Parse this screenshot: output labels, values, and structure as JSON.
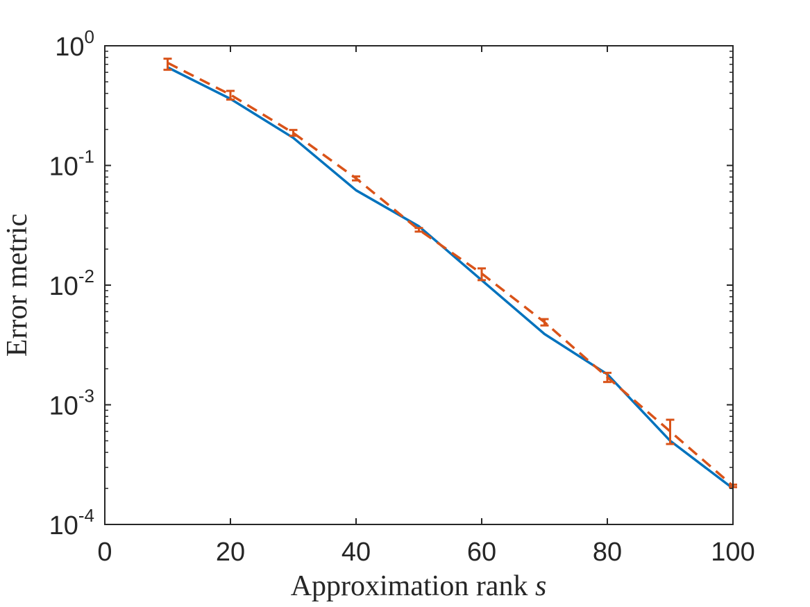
{
  "chart_data": {
    "type": "line",
    "xlabel": "Approximation rank",
    "xlabel_symbol": "s",
    "ylabel": "Error metric",
    "xlim": [
      0,
      100
    ],
    "ylim": [
      0.0001,
      1
    ],
    "yscale": "log",
    "grid": false,
    "legend": "none",
    "xticks": [
      0,
      20,
      40,
      60,
      80,
      100
    ],
    "xtick_labels": [
      "0",
      "20",
      "40",
      "60",
      "80",
      "100"
    ],
    "yticks": [
      1,
      0.1,
      0.01,
      0.001,
      0.0001
    ],
    "ytick_base": [
      "10",
      "10",
      "10",
      "10",
      "10"
    ],
    "ytick_exponents": [
      "0",
      "-1",
      "-2",
      "-3",
      "-4"
    ],
    "x": [
      10,
      20,
      30,
      40,
      50,
      60,
      70,
      80,
      90,
      100
    ],
    "series": [
      {
        "style": "solid",
        "color": "#0072BD",
        "values": [
          0.66,
          0.36,
          0.17,
          0.062,
          0.031,
          0.011,
          0.0039,
          0.0018,
          0.0005,
          0.0002
        ]
      },
      {
        "style": "dashed",
        "color": "#D95319",
        "values": [
          0.72,
          0.39,
          0.187,
          0.078,
          0.029,
          0.0125,
          0.0049,
          0.0017,
          0.0006,
          0.00021
        ],
        "error_low": [
          0.63,
          0.355,
          0.177,
          0.075,
          0.028,
          0.011,
          0.0046,
          0.00155,
          0.00047,
          0.000205
        ],
        "error_high": [
          0.78,
          0.42,
          0.198,
          0.081,
          0.03,
          0.0138,
          0.0052,
          0.00185,
          0.00075,
          0.000215
        ]
      }
    ]
  }
}
